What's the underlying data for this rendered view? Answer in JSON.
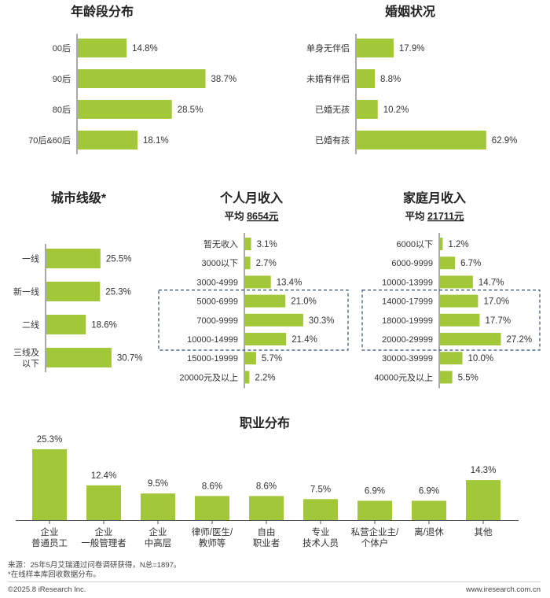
{
  "colors": {
    "bar": "#a2c839",
    "text": "#333333",
    "title": "#222222",
    "axis": "#555555",
    "dash": "#2f4f6f"
  },
  "chart_data": [
    {
      "type": "bar",
      "orientation": "horizontal",
      "title": "年龄段分布",
      "categories": [
        "00后",
        "90后",
        "80后",
        "70后&60后"
      ],
      "values": [
        14.8,
        38.7,
        28.5,
        18.1
      ],
      "labels": [
        "14.8%",
        "38.7%",
        "28.5%",
        "18.1%"
      ],
      "unit": "%"
    },
    {
      "type": "bar",
      "orientation": "horizontal",
      "title": "婚姻状况",
      "categories": [
        "单身无伴侣",
        "未婚有伴侣",
        "已婚无孩",
        "已婚有孩"
      ],
      "values": [
        17.9,
        8.8,
        10.2,
        62.9
      ],
      "labels": [
        "17.9%",
        "8.8%",
        "10.2%",
        "62.9%"
      ],
      "unit": "%"
    },
    {
      "type": "bar",
      "orientation": "horizontal",
      "title": "城市线级*",
      "categories": [
        "一线",
        "新一线",
        "二线",
        "三线及|以下"
      ],
      "values": [
        25.5,
        25.3,
        18.6,
        30.7
      ],
      "labels": [
        "25.5%",
        "25.3%",
        "18.6%",
        "30.7%"
      ],
      "unit": "%"
    },
    {
      "type": "bar",
      "orientation": "horizontal",
      "title": "个人月收入",
      "subtitle_prefix": "平均 ",
      "subtitle_value": "8654元",
      "categories": [
        "暂无收入",
        "3000以下",
        "3000-4999",
        "5000-6999",
        "7000-9999",
        "10000-14999",
        "15000-19999",
        "20000元及以上"
      ],
      "values": [
        3.1,
        2.7,
        13.4,
        21.0,
        30.3,
        21.4,
        5.7,
        2.2
      ],
      "labels": [
        "3.1%",
        "2.7%",
        "13.4%",
        "21.0%",
        "30.3%",
        "21.4%",
        "5.7%",
        "2.2%"
      ],
      "highlight": [
        3,
        5
      ],
      "unit": "%"
    },
    {
      "type": "bar",
      "orientation": "horizontal",
      "title": "家庭月收入",
      "subtitle_prefix": "平均 ",
      "subtitle_value": "21711元",
      "categories": [
        "6000以下",
        "6000-9999",
        "10000-13999",
        "14000-17999",
        "18000-19999",
        "20000-29999",
        "30000-39999",
        "40000元及以上"
      ],
      "values": [
        1.2,
        6.7,
        14.7,
        17.0,
        17.7,
        27.2,
        10.0,
        5.5
      ],
      "labels": [
        "1.2%",
        "6.7%",
        "14.7%",
        "17.0%",
        "17.7%",
        "27.2%",
        "10.0%",
        "5.5%"
      ],
      "highlight": [
        3,
        5
      ],
      "unit": "%"
    },
    {
      "type": "bar",
      "orientation": "vertical",
      "title": "职业分布",
      "categories": [
        "企业|普通员工",
        "企业|一般管理者",
        "企业|中高层",
        "律师/医生/|教师等",
        "自由|职业者",
        "专业|技术人员",
        "私营企业主/|个体户",
        "离/退休",
        "其他"
      ],
      "values": [
        25.3,
        12.4,
        9.5,
        8.6,
        8.6,
        7.5,
        6.9,
        6.9,
        14.3
      ],
      "labels": [
        "25.3%",
        "12.4%",
        "9.5%",
        "8.6%",
        "8.6%",
        "7.5%",
        "6.9%",
        "6.9%",
        "14.3%"
      ],
      "unit": "%"
    }
  ],
  "footer": {
    "source": "来源：25年5月艾瑞通过问卷调研获得，N总=1897。",
    "note": "*在线样本库回收数据分布。",
    "copyright": "©2025.8 iResearch Inc.",
    "url": "www.iresearch.com.cn"
  }
}
